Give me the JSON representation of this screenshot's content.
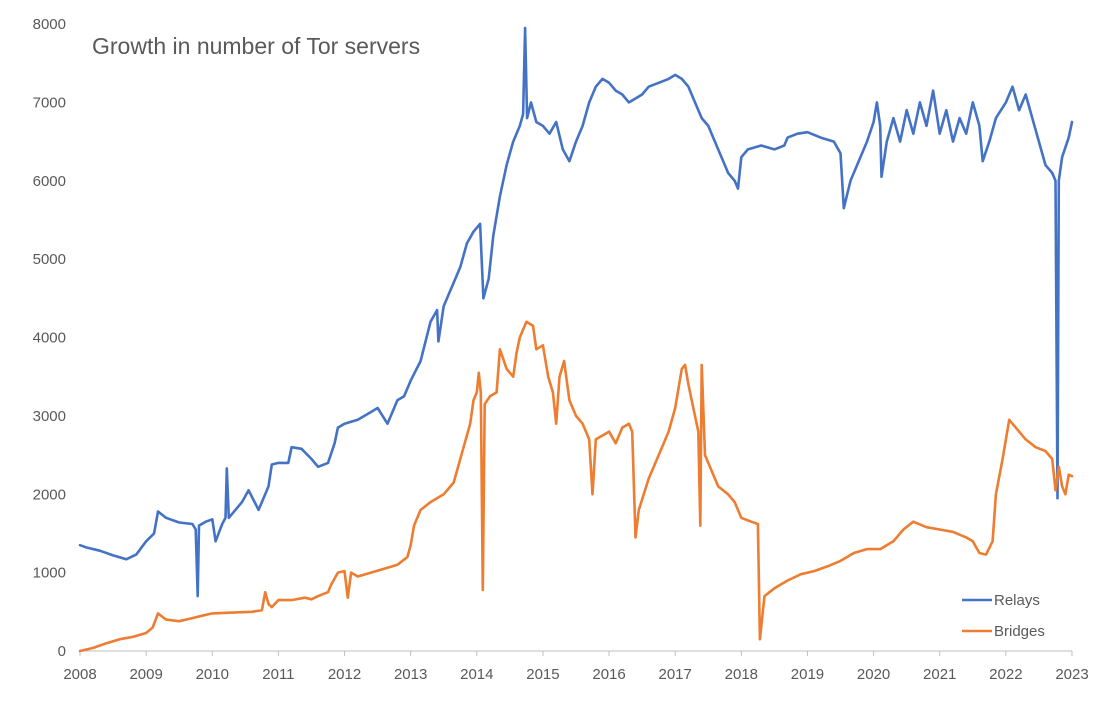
{
  "chart_data": {
    "type": "line",
    "title": "Growth in number of Tor servers",
    "xlabel": "",
    "ylabel": "",
    "xlim": [
      2008,
      2023
    ],
    "ylim": [
      0,
      8000
    ],
    "x_ticks": [
      "2008",
      "2009",
      "2010",
      "2011",
      "2012",
      "2013",
      "2014",
      "2015",
      "2016",
      "2017",
      "2018",
      "2019",
      "2020",
      "2021",
      "2022",
      "2023"
    ],
    "y_ticks": [
      "0",
      "1000",
      "2000",
      "3000",
      "4000",
      "5000",
      "6000",
      "7000",
      "8000"
    ],
    "grid": false,
    "legend_position": "bottom-right",
    "series": [
      {
        "name": "Relays",
        "color": "#4472C4",
        "points": [
          [
            2008.0,
            1350
          ],
          [
            2008.1,
            1320
          ],
          [
            2008.3,
            1280
          ],
          [
            2008.5,
            1220
          ],
          [
            2008.7,
            1170
          ],
          [
            2008.85,
            1230
          ],
          [
            2009.0,
            1400
          ],
          [
            2009.12,
            1500
          ],
          [
            2009.18,
            1780
          ],
          [
            2009.3,
            1700
          ],
          [
            2009.5,
            1640
          ],
          [
            2009.7,
            1620
          ],
          [
            2009.75,
            1550
          ],
          [
            2009.78,
            700
          ],
          [
            2009.8,
            1600
          ],
          [
            2009.9,
            1650
          ],
          [
            2010.0,
            1680
          ],
          [
            2010.05,
            1400
          ],
          [
            2010.15,
            1620
          ],
          [
            2010.2,
            1700
          ],
          [
            2010.22,
            2330
          ],
          [
            2010.25,
            1700
          ],
          [
            2010.45,
            1900
          ],
          [
            2010.55,
            2050
          ],
          [
            2010.7,
            1800
          ],
          [
            2010.85,
            2100
          ],
          [
            2010.9,
            2380
          ],
          [
            2011.0,
            2400
          ],
          [
            2011.15,
            2400
          ],
          [
            2011.2,
            2600
          ],
          [
            2011.35,
            2580
          ],
          [
            2011.5,
            2450
          ],
          [
            2011.6,
            2350
          ],
          [
            2011.75,
            2400
          ],
          [
            2011.85,
            2650
          ],
          [
            2011.9,
            2850
          ],
          [
            2012.0,
            2900
          ],
          [
            2012.2,
            2950
          ],
          [
            2012.4,
            3050
          ],
          [
            2012.5,
            3100
          ],
          [
            2012.65,
            2900
          ],
          [
            2012.8,
            3200
          ],
          [
            2012.9,
            3250
          ],
          [
            2013.0,
            3450
          ],
          [
            2013.15,
            3700
          ],
          [
            2013.3,
            4200
          ],
          [
            2013.4,
            4350
          ],
          [
            2013.42,
            3950
          ],
          [
            2013.5,
            4400
          ],
          [
            2013.65,
            4700
          ],
          [
            2013.75,
            4900
          ],
          [
            2013.85,
            5200
          ],
          [
            2013.95,
            5350
          ],
          [
            2014.05,
            5450
          ],
          [
            2014.1,
            4500
          ],
          [
            2014.18,
            4750
          ],
          [
            2014.25,
            5300
          ],
          [
            2014.35,
            5800
          ],
          [
            2014.45,
            6200
          ],
          [
            2014.55,
            6500
          ],
          [
            2014.65,
            6700
          ],
          [
            2014.7,
            6850
          ],
          [
            2014.73,
            7950
          ],
          [
            2014.76,
            6800
          ],
          [
            2014.82,
            7000
          ],
          [
            2014.9,
            6750
          ],
          [
            2015.0,
            6700
          ],
          [
            2015.1,
            6600
          ],
          [
            2015.2,
            6750
          ],
          [
            2015.3,
            6400
          ],
          [
            2015.4,
            6250
          ],
          [
            2015.5,
            6500
          ],
          [
            2015.6,
            6700
          ],
          [
            2015.7,
            7000
          ],
          [
            2015.8,
            7200
          ],
          [
            2015.9,
            7300
          ],
          [
            2016.0,
            7250
          ],
          [
            2016.1,
            7150
          ],
          [
            2016.2,
            7100
          ],
          [
            2016.3,
            7000
          ],
          [
            2016.4,
            7050
          ],
          [
            2016.5,
            7100
          ],
          [
            2016.6,
            7200
          ],
          [
            2016.75,
            7250
          ],
          [
            2016.9,
            7300
          ],
          [
            2017.0,
            7350
          ],
          [
            2017.1,
            7300
          ],
          [
            2017.2,
            7200
          ],
          [
            2017.3,
            7000
          ],
          [
            2017.4,
            6800
          ],
          [
            2017.5,
            6700
          ],
          [
            2017.6,
            6500
          ],
          [
            2017.7,
            6300
          ],
          [
            2017.8,
            6100
          ],
          [
            2017.9,
            6000
          ],
          [
            2017.95,
            5900
          ],
          [
            2018.0,
            6300
          ],
          [
            2018.1,
            6400
          ],
          [
            2018.3,
            6450
          ],
          [
            2018.5,
            6400
          ],
          [
            2018.65,
            6450
          ],
          [
            2018.7,
            6550
          ],
          [
            2018.85,
            6600
          ],
          [
            2019.0,
            6620
          ],
          [
            2019.2,
            6550
          ],
          [
            2019.4,
            6500
          ],
          [
            2019.5,
            6350
          ],
          [
            2019.55,
            5650
          ],
          [
            2019.65,
            6000
          ],
          [
            2019.8,
            6300
          ],
          [
            2019.9,
            6500
          ],
          [
            2020.0,
            6750
          ],
          [
            2020.05,
            7000
          ],
          [
            2020.1,
            6700
          ],
          [
            2020.12,
            6050
          ],
          [
            2020.2,
            6500
          ],
          [
            2020.3,
            6800
          ],
          [
            2020.4,
            6500
          ],
          [
            2020.5,
            6900
          ],
          [
            2020.6,
            6600
          ],
          [
            2020.7,
            7000
          ],
          [
            2020.8,
            6700
          ],
          [
            2020.9,
            7150
          ],
          [
            2021.0,
            6600
          ],
          [
            2021.1,
            6900
          ],
          [
            2021.2,
            6500
          ],
          [
            2021.3,
            6800
          ],
          [
            2021.4,
            6600
          ],
          [
            2021.5,
            7000
          ],
          [
            2021.6,
            6700
          ],
          [
            2021.65,
            6250
          ],
          [
            2021.75,
            6500
          ],
          [
            2021.85,
            6800
          ],
          [
            2022.0,
            7000
          ],
          [
            2022.1,
            7200
          ],
          [
            2022.2,
            6900
          ],
          [
            2022.3,
            7100
          ],
          [
            2022.4,
            6800
          ],
          [
            2022.5,
            6500
          ],
          [
            2022.6,
            6200
          ],
          [
            2022.7,
            6100
          ],
          [
            2022.75,
            6000
          ],
          [
            2022.78,
            1950
          ],
          [
            2022.8,
            6000
          ],
          [
            2022.85,
            6300
          ],
          [
            2022.95,
            6550
          ],
          [
            2023.0,
            6750
          ]
        ]
      },
      {
        "name": "Bridges",
        "color": "#ED7D31",
        "points": [
          [
            2008.0,
            0
          ],
          [
            2008.2,
            40
          ],
          [
            2008.4,
            100
          ],
          [
            2008.6,
            150
          ],
          [
            2008.8,
            180
          ],
          [
            2009.0,
            230
          ],
          [
            2009.1,
            300
          ],
          [
            2009.18,
            480
          ],
          [
            2009.3,
            400
          ],
          [
            2009.5,
            380
          ],
          [
            2009.7,
            420
          ],
          [
            2009.85,
            450
          ],
          [
            2010.0,
            480
          ],
          [
            2010.3,
            490
          ],
          [
            2010.6,
            500
          ],
          [
            2010.75,
            520
          ],
          [
            2010.8,
            750
          ],
          [
            2010.85,
            600
          ],
          [
            2010.9,
            560
          ],
          [
            2011.0,
            650
          ],
          [
            2011.2,
            650
          ],
          [
            2011.4,
            680
          ],
          [
            2011.5,
            660
          ],
          [
            2011.6,
            700
          ],
          [
            2011.75,
            750
          ],
          [
            2011.8,
            850
          ],
          [
            2011.9,
            1000
          ],
          [
            2012.0,
            1020
          ],
          [
            2012.05,
            680
          ],
          [
            2012.1,
            1000
          ],
          [
            2012.2,
            950
          ],
          [
            2012.4,
            1000
          ],
          [
            2012.6,
            1050
          ],
          [
            2012.8,
            1100
          ],
          [
            2012.95,
            1200
          ],
          [
            2013.0,
            1350
          ],
          [
            2013.05,
            1600
          ],
          [
            2013.15,
            1800
          ],
          [
            2013.3,
            1900
          ],
          [
            2013.5,
            2000
          ],
          [
            2013.65,
            2150
          ],
          [
            2013.8,
            2600
          ],
          [
            2013.9,
            2900
          ],
          [
            2013.95,
            3200
          ],
          [
            2014.0,
            3300
          ],
          [
            2014.03,
            3550
          ],
          [
            2014.06,
            3300
          ],
          [
            2014.09,
            780
          ],
          [
            2014.12,
            3150
          ],
          [
            2014.2,
            3250
          ],
          [
            2014.3,
            3300
          ],
          [
            2014.35,
            3850
          ],
          [
            2014.45,
            3600
          ],
          [
            2014.55,
            3500
          ],
          [
            2014.6,
            3800
          ],
          [
            2014.65,
            4000
          ],
          [
            2014.75,
            4200
          ],
          [
            2014.85,
            4150
          ],
          [
            2014.9,
            3850
          ],
          [
            2015.0,
            3900
          ],
          [
            2015.08,
            3500
          ],
          [
            2015.15,
            3300
          ],
          [
            2015.2,
            2900
          ],
          [
            2015.25,
            3500
          ],
          [
            2015.32,
            3700
          ],
          [
            2015.4,
            3200
          ],
          [
            2015.5,
            3000
          ],
          [
            2015.6,
            2900
          ],
          [
            2015.7,
            2700
          ],
          [
            2015.75,
            2000
          ],
          [
            2015.8,
            2700
          ],
          [
            2015.9,
            2750
          ],
          [
            2016.0,
            2800
          ],
          [
            2016.1,
            2650
          ],
          [
            2016.2,
            2850
          ],
          [
            2016.3,
            2900
          ],
          [
            2016.35,
            2800
          ],
          [
            2016.4,
            1450
          ],
          [
            2016.45,
            1800
          ],
          [
            2016.6,
            2200
          ],
          [
            2016.75,
            2500
          ],
          [
            2016.9,
            2800
          ],
          [
            2017.0,
            3100
          ],
          [
            2017.1,
            3600
          ],
          [
            2017.15,
            3650
          ],
          [
            2017.2,
            3400
          ],
          [
            2017.3,
            3000
          ],
          [
            2017.35,
            2800
          ],
          [
            2017.38,
            1600
          ],
          [
            2017.4,
            3650
          ],
          [
            2017.45,
            2500
          ],
          [
            2017.55,
            2300
          ],
          [
            2017.65,
            2100
          ],
          [
            2017.8,
            2000
          ],
          [
            2017.9,
            1900
          ],
          [
            2018.0,
            1700
          ],
          [
            2018.15,
            1650
          ],
          [
            2018.25,
            1620
          ],
          [
            2018.28,
            150
          ],
          [
            2018.35,
            700
          ],
          [
            2018.5,
            800
          ],
          [
            2018.7,
            900
          ],
          [
            2018.9,
            980
          ],
          [
            2019.1,
            1020
          ],
          [
            2019.3,
            1080
          ],
          [
            2019.5,
            1150
          ],
          [
            2019.7,
            1250
          ],
          [
            2019.9,
            1300
          ],
          [
            2020.1,
            1300
          ],
          [
            2020.3,
            1400
          ],
          [
            2020.45,
            1550
          ],
          [
            2020.6,
            1650
          ],
          [
            2020.8,
            1580
          ],
          [
            2021.0,
            1550
          ],
          [
            2021.2,
            1520
          ],
          [
            2021.4,
            1450
          ],
          [
            2021.5,
            1400
          ],
          [
            2021.6,
            1250
          ],
          [
            2021.7,
            1230
          ],
          [
            2021.8,
            1400
          ],
          [
            2021.85,
            2000
          ],
          [
            2021.95,
            2450
          ],
          [
            2022.05,
            2950
          ],
          [
            2022.15,
            2850
          ],
          [
            2022.3,
            2700
          ],
          [
            2022.45,
            2600
          ],
          [
            2022.6,
            2550
          ],
          [
            2022.7,
            2450
          ],
          [
            2022.75,
            2050
          ],
          [
            2022.8,
            2350
          ],
          [
            2022.85,
            2100
          ],
          [
            2022.9,
            2000
          ],
          [
            2022.95,
            2250
          ],
          [
            2023.0,
            2230
          ]
        ]
      }
    ]
  }
}
